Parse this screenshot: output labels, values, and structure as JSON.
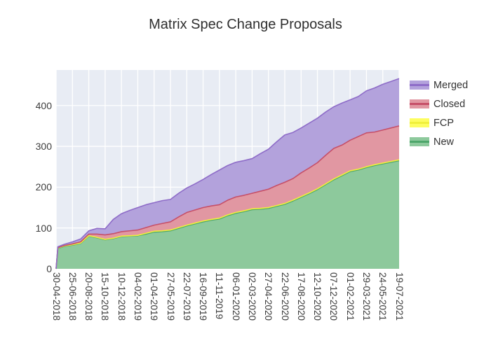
{
  "title": "Matrix Spec Change Proposals",
  "colors": {
    "figure_background": "#ffffff",
    "plot_background": "#e8ecf4",
    "gridline": "#ffffff",
    "tick_text": "#3d3d3d",
    "title_text": "#2f2f2f",
    "legend_text": "#333333"
  },
  "chart_data": {
    "type": "area",
    "stacked": true,
    "title": "Matrix Spec Change Proposals",
    "xlabel": "",
    "ylabel": "",
    "grid": true,
    "legend_position": "right-top-outside",
    "legend_order": [
      "Merged",
      "Closed",
      "FCP",
      "New"
    ],
    "y_ticks": [
      0,
      100,
      200,
      300,
      400
    ],
    "ylim": [
      0,
      487
    ],
    "x_range_days": [
      0,
      1176
    ],
    "x_tick_labels": [
      "30-04-2018",
      "25-06-2018",
      "20-08-2018",
      "15-10-2018",
      "10-12-2018",
      "04-02-2019",
      "01-04-2019",
      "27-05-2019",
      "22-07-2019",
      "16-09-2019",
      "11-11-2019",
      "06-01-2020",
      "02-03-2020",
      "27-04-2020",
      "22-06-2020",
      "17-08-2020",
      "12-10-2020",
      "07-12-2020",
      "01-02-2021",
      "29-03-2021",
      "24-05-2021",
      "19-07-2021"
    ],
    "x": [
      0,
      6,
      28,
      56,
      84,
      112,
      140,
      168,
      196,
      224,
      252,
      280,
      308,
      336,
      364,
      392,
      420,
      448,
      476,
      504,
      532,
      560,
      588,
      616,
      644,
      672,
      700,
      728,
      756,
      784,
      812,
      840,
      868,
      896,
      924,
      952,
      980,
      1008,
      1036,
      1064,
      1092,
      1120,
      1148,
      1176
    ],
    "series": [
      {
        "name": "New",
        "fill": "#8dc99c",
        "line": "#4ea66b",
        "values": [
          0,
          50,
          55,
          58,
          62,
          80,
          76,
          71,
          74,
          79,
          80,
          81,
          85,
          90,
          91,
          93,
          99,
          105,
          110,
          115,
          119,
          122,
          130,
          136,
          140,
          145,
          146,
          148,
          153,
          158,
          166,
          175,
          184,
          194,
          206,
          218,
          228,
          238,
          242,
          248,
          253,
          257,
          261,
          265
        ]
      },
      {
        "name": "FCP",
        "fill": "#fdfd60",
        "line": "#f0f03c",
        "values": [
          0,
          1,
          1,
          1,
          1,
          1,
          1,
          1,
          1,
          1,
          1,
          1,
          2,
          2,
          2,
          2,
          2,
          2,
          2,
          2,
          2,
          2,
          2,
          2,
          2,
          2,
          2,
          2,
          2,
          2,
          2,
          2,
          2,
          2,
          2,
          2,
          2,
          2,
          2,
          2,
          2,
          2,
          2,
          2
        ]
      },
      {
        "name": "Closed",
        "fill": "#e197a2",
        "line": "#c64f68",
        "values": [
          0,
          1,
          1,
          2,
          3,
          4,
          8,
          11,
          11,
          11,
          12,
          13,
          14,
          15,
          18,
          20,
          26,
          31,
          32,
          33,
          33,
          33,
          36,
          38,
          38,
          38,
          42,
          45,
          49,
          52,
          53,
          58,
          61,
          64,
          70,
          75,
          73,
          75,
          80,
          83,
          80,
          81,
          82,
          83
        ]
      },
      {
        "name": "Merged",
        "fill": "#b3a2dc",
        "line": "#8e6cc8",
        "values": [
          0,
          2,
          3,
          5,
          7,
          8,
          14,
          15,
          35,
          44,
          50,
          55,
          56,
          55,
          56,
          55,
          58,
          60,
          64,
          69,
          77,
          85,
          85,
          85,
          85,
          85,
          92,
          98,
          107,
          116,
          113,
          110,
          110,
          109,
          106,
          102,
          103,
          99,
          98,
          103,
          108,
          112,
          114,
          116
        ]
      }
    ]
  }
}
